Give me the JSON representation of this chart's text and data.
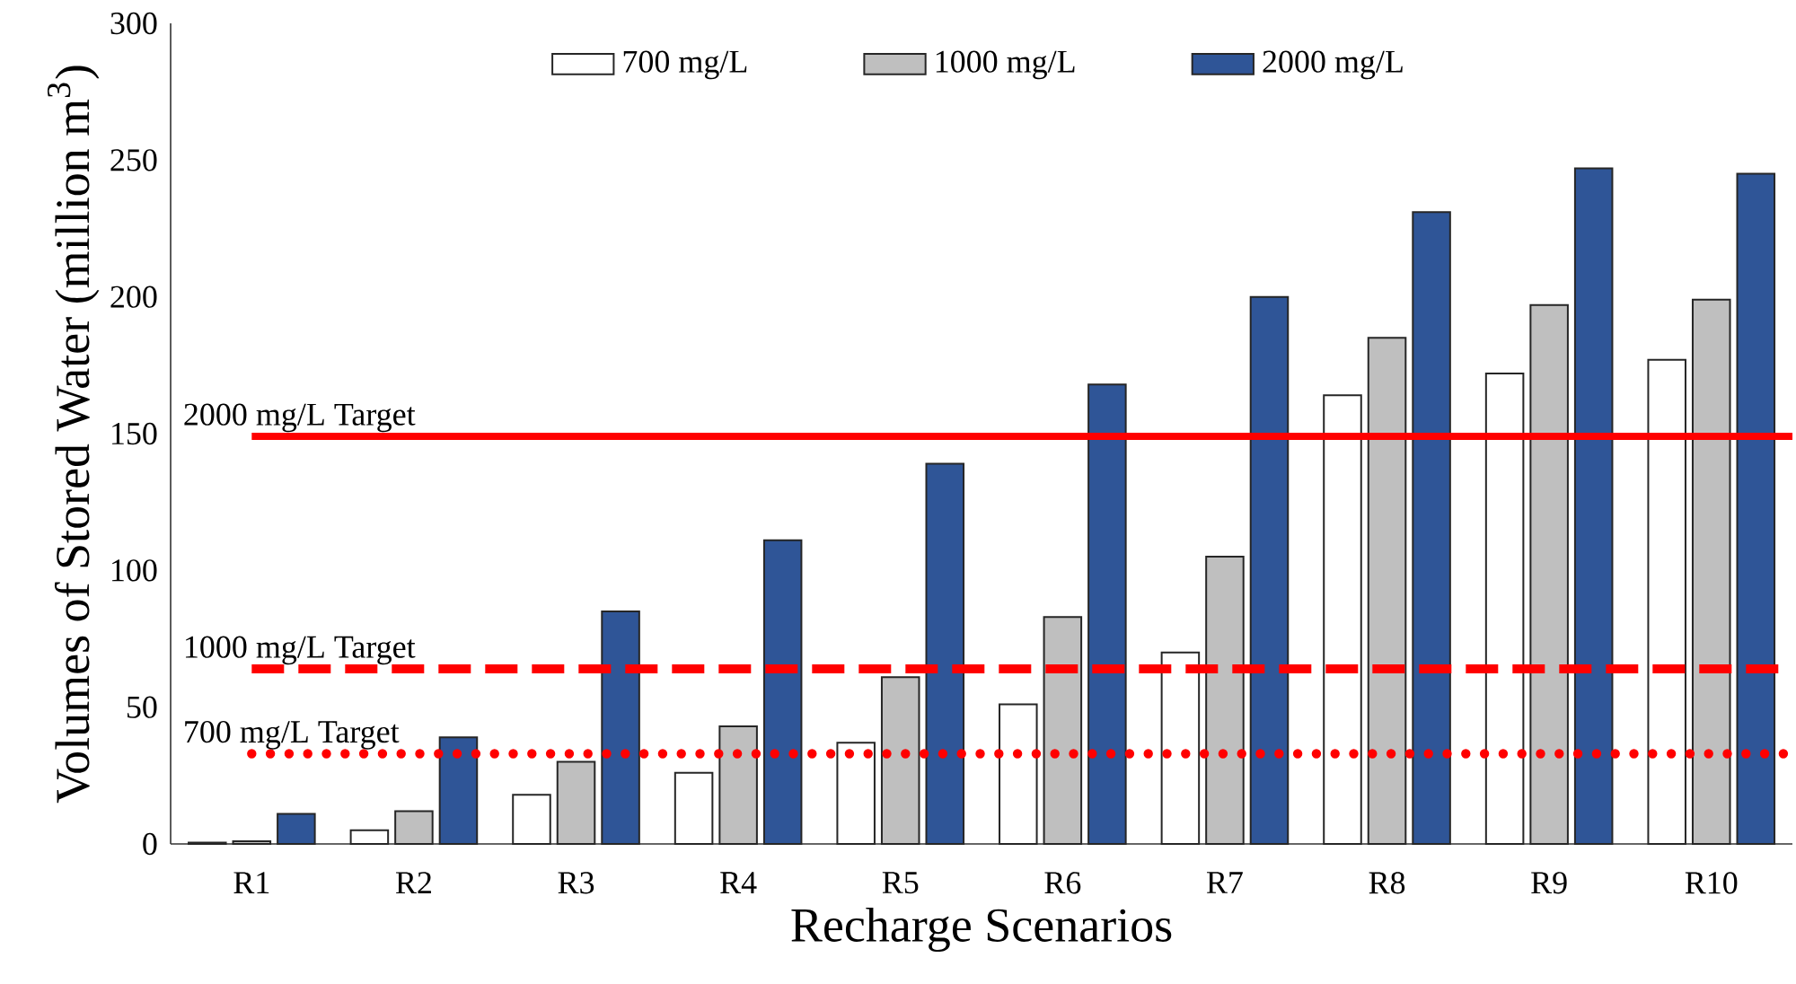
{
  "chart_data": {
    "type": "bar",
    "xlabel": "Recharge Scenarios",
    "ylabel": "Volumes of Stored Water (million m$^{3}$)",
    "categories": [
      "R1",
      "R2",
      "R3",
      "R4",
      "R5",
      "R6",
      "R7",
      "R8",
      "R9",
      "R10"
    ],
    "series": [
      {
        "name": "700 mg/L",
        "color": "#ffffff",
        "values": [
          0.5,
          5,
          18,
          26,
          37,
          51,
          70,
          164,
          172,
          177
        ]
      },
      {
        "name": "1000 mg/L",
        "color": "#bfbfbf",
        "values": [
          1,
          12,
          30,
          43,
          61,
          83,
          105,
          185,
          197,
          199
        ]
      },
      {
        "name": "2000 mg/L",
        "color": "#2f5597",
        "values": [
          11,
          39,
          85,
          111,
          139,
          168,
          200,
          231,
          247,
          245
        ]
      }
    ],
    "ylim": [
      0,
      300
    ],
    "yticks": [
      0,
      50,
      100,
      150,
      200,
      250,
      300
    ],
    "ref_lines": [
      {
        "axis": "y",
        "value": 149,
        "label": "2000 mg/L Target",
        "color": "#ff0000",
        "line_style": "solid"
      },
      {
        "axis": "y",
        "value": 64,
        "label": "1000 mg/L Target",
        "color": "#ff0000",
        "line_style": "dashed"
      },
      {
        "axis": "y",
        "value": 33,
        "label": "700 mg/L Target",
        "color": "#ff0000",
        "line_style": "dotted"
      }
    ],
    "grid": false,
    "legend": "top"
  }
}
